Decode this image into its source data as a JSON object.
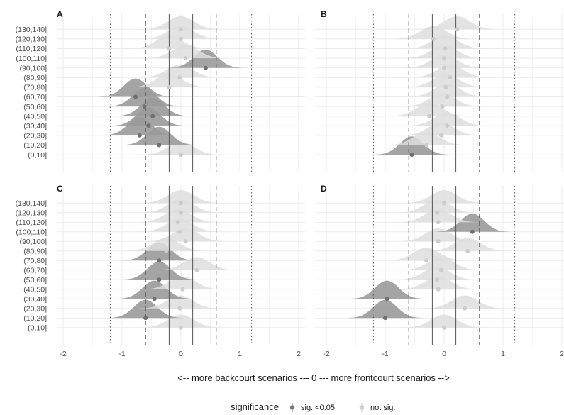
{
  "chart_data": {
    "type": "ridgeline",
    "categories": [
      "(0,10]",
      "(10,20]",
      "(20,30]",
      "(30,40]",
      "(40,50]",
      "(50,60]",
      "(60,70]",
      "(70,80]",
      "(80,90]",
      "(90,100]",
      "(100,110]",
      "(110,120]",
      "(120,130]",
      "(130,140]"
    ],
    "xlim": [
      -2.2,
      2.2
    ],
    "x_ticks": [
      -2,
      -1,
      0,
      1,
      2
    ],
    "xlabel": "<-- more backcourt scenarios --- 0 --- more frontcourt scenarios -->",
    "reference_lines": {
      "solid": [
        -0.2,
        0.2
      ],
      "dashed": [
        -0.6,
        0.6
      ],
      "dotted": [
        -1.2,
        1.2
      ]
    },
    "legend": {
      "title": "significance",
      "entries": [
        {
          "key": "sig",
          "label": "sig. <0.05",
          "color": "#8c8c8c"
        },
        {
          "key": "ns",
          "label": "not sig.",
          "color": "#d3d3d3"
        }
      ],
      "position": "bottom"
    },
    "grid": true,
    "panels": [
      {
        "title": "A",
        "points": [
          {
            "category": "(0,10]",
            "estimate": 0.0,
            "sig": false
          },
          {
            "category": "(10,20]",
            "estimate": -0.37,
            "sig": true
          },
          {
            "category": "(20,30]",
            "estimate": -0.7,
            "sig": true
          },
          {
            "category": "(30,40]",
            "estimate": -0.55,
            "sig": true
          },
          {
            "category": "(40,50]",
            "estimate": -0.48,
            "sig": true
          },
          {
            "category": "(50,60]",
            "estimate": -0.62,
            "sig": true
          },
          {
            "category": "(60,70]",
            "estimate": -0.77,
            "sig": true
          },
          {
            "category": "(70,80]",
            "estimate": -0.2,
            "sig": false
          },
          {
            "category": "(80,90]",
            "estimate": -0.02,
            "sig": false
          },
          {
            "category": "(90,100]",
            "estimate": 0.42,
            "sig": true
          },
          {
            "category": "(100,110]",
            "estimate": 0.08,
            "sig": false
          },
          {
            "category": "(110,120]",
            "estimate": -0.2,
            "sig": false
          },
          {
            "category": "(120,130]",
            "estimate": 0.0,
            "sig": false
          },
          {
            "category": "(130,140]",
            "estimate": 0.0,
            "sig": false
          }
        ]
      },
      {
        "title": "B",
        "points": [
          {
            "category": "(0,10]",
            "estimate": -0.55,
            "sig": true
          },
          {
            "category": "(10,20]",
            "estimate": -0.3,
            "sig": false
          },
          {
            "category": "(20,30]",
            "estimate": -0.05,
            "sig": false
          },
          {
            "category": "(30,40]",
            "estimate": 0.05,
            "sig": false
          },
          {
            "category": "(40,50]",
            "estimate": -0.25,
            "sig": false
          },
          {
            "category": "(50,60]",
            "estimate": -0.03,
            "sig": false
          },
          {
            "category": "(60,70]",
            "estimate": 0.05,
            "sig": false
          },
          {
            "category": "(70,80]",
            "estimate": 0.03,
            "sig": false
          },
          {
            "category": "(80,90]",
            "estimate": 0.1,
            "sig": false
          },
          {
            "category": "(90,100]",
            "estimate": 0.0,
            "sig": false
          },
          {
            "category": "(100,110]",
            "estimate": 0.0,
            "sig": false
          },
          {
            "category": "(110,120]",
            "estimate": 0.02,
            "sig": false
          },
          {
            "category": "(120,130]",
            "estimate": -0.18,
            "sig": false
          },
          {
            "category": "(130,140]",
            "estimate": 0.22,
            "sig": false
          }
        ]
      },
      {
        "title": "C",
        "points": [
          {
            "category": "(0,10]",
            "estimate": 0.0,
            "sig": false
          },
          {
            "category": "(10,20]",
            "estimate": -0.6,
            "sig": true
          },
          {
            "category": "(20,30]",
            "estimate": -0.02,
            "sig": false
          },
          {
            "category": "(30,40]",
            "estimate": -0.45,
            "sig": true
          },
          {
            "category": "(40,50]",
            "estimate": 0.03,
            "sig": false
          },
          {
            "category": "(50,60]",
            "estimate": -0.37,
            "sig": true
          },
          {
            "category": "(60,70]",
            "estimate": 0.27,
            "sig": false
          },
          {
            "category": "(70,80]",
            "estimate": -0.37,
            "sig": true
          },
          {
            "category": "(80,90]",
            "estimate": -0.25,
            "sig": false
          },
          {
            "category": "(90,100]",
            "estimate": 0.08,
            "sig": false
          },
          {
            "category": "(100,110]",
            "estimate": -0.02,
            "sig": false
          },
          {
            "category": "(110,120]",
            "estimate": -0.05,
            "sig": false
          },
          {
            "category": "(120,130]",
            "estimate": 0.0,
            "sig": false
          },
          {
            "category": "(130,140]",
            "estimate": 0.0,
            "sig": false
          }
        ]
      },
      {
        "title": "D",
        "points": [
          {
            "category": "(0,10]",
            "estimate": 0.0,
            "sig": false
          },
          {
            "category": "(10,20]",
            "estimate": -1.0,
            "sig": true
          },
          {
            "category": "(20,30]",
            "estimate": 0.35,
            "sig": false
          },
          {
            "category": "(30,40]",
            "estimate": -0.97,
            "sig": true
          },
          {
            "category": "(40,50]",
            "estimate": -0.1,
            "sig": false
          },
          {
            "category": "(50,60]",
            "estimate": -0.12,
            "sig": false
          },
          {
            "category": "(60,70]",
            "estimate": -0.05,
            "sig": false
          },
          {
            "category": "(70,80]",
            "estimate": -0.3,
            "sig": false
          },
          {
            "category": "(80,90]",
            "estimate": 0.4,
            "sig": false
          },
          {
            "category": "(90,100]",
            "estimate": -0.1,
            "sig": false
          },
          {
            "category": "(100,110]",
            "estimate": 0.48,
            "sig": true
          },
          {
            "category": "(110,120]",
            "estimate": -0.1,
            "sig": false
          },
          {
            "category": "(120,130]",
            "estimate": -0.12,
            "sig": false
          },
          {
            "category": "(130,140]",
            "estimate": 0.0,
            "sig": false
          }
        ]
      }
    ]
  }
}
